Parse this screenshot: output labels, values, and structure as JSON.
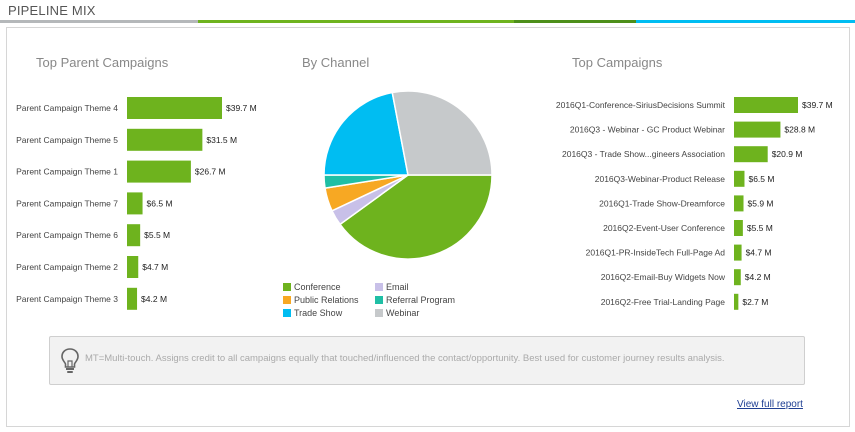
{
  "header": {
    "title": "PIPELINE MIX"
  },
  "colors": {
    "conference": "#6eb31e",
    "email": "#c8c0e8",
    "public_relations": "#f7a823",
    "referral_program": "#1fbfa5",
    "trade_show": "#00bdf2",
    "webinar": "#c6c9cb"
  },
  "chart_data": [
    {
      "type": "bar",
      "orientation": "horizontal",
      "title": "Top Parent Campaigns",
      "categories": [
        "Parent Campaign Theme 4",
        "Parent Campaign Theme 5",
        "Parent Campaign Theme 1",
        "Parent Campaign Theme 7",
        "Parent Campaign Theme 6",
        "Parent Campaign Theme 2",
        "Parent Campaign Theme 3"
      ],
      "values": [
        39.7,
        31.5,
        26.7,
        6.5,
        5.5,
        4.7,
        4.2
      ],
      "labels": [
        "$39.7 M",
        "$31.5 M",
        "$26.7 M",
        "$6.5 M",
        "$5.5 M",
        "$4.7 M",
        "$4.2 M"
      ]
    },
    {
      "type": "pie",
      "title": "By Channel",
      "categories": [
        "Conference",
        "Email",
        "Public Relations",
        "Referral Program",
        "Trade Show",
        "Webinar"
      ],
      "values": [
        40.0,
        3.0,
        4.5,
        2.5,
        22.0,
        28.0
      ]
    },
    {
      "type": "bar",
      "orientation": "horizontal",
      "title": "Top Campaigns",
      "categories": [
        "2016Q1-Conference-SiriusDecisions Summit",
        "2016Q3 - Webinar - GC Product Webinar",
        "2016Q3 - Trade Show...gineers Association",
        "2016Q3-Webinar-Product Release",
        "2016Q1-Trade Show-Dreamforce",
        "2016Q2-Event-User Conference",
        "2016Q1-PR-InsideTech Full-Page Ad",
        "2016Q2-Email-Buy Widgets Now",
        "2016Q2-Free Trial-Landing Page"
      ],
      "values": [
        39.7,
        28.8,
        20.9,
        6.5,
        5.9,
        5.5,
        4.7,
        4.2,
        2.7
      ],
      "labels": [
        "$39.7 M",
        "$28.8 M",
        "$20.9 M",
        "$6.5 M",
        "$5.9 M",
        "$5.5 M",
        "$4.7 M",
        "$4.2 M",
        "$2.7 M"
      ]
    }
  ],
  "legend": [
    "Conference",
    "Email",
    "Public Relations",
    "Referral Program",
    "Trade Show",
    "Webinar"
  ],
  "note": {
    "text": "MT=Multi-touch. Assigns credit to all campaigns equally that touched/influenced the contact/opportunity. Best used for customer journey results analysis."
  },
  "link": {
    "label": "View full report"
  }
}
